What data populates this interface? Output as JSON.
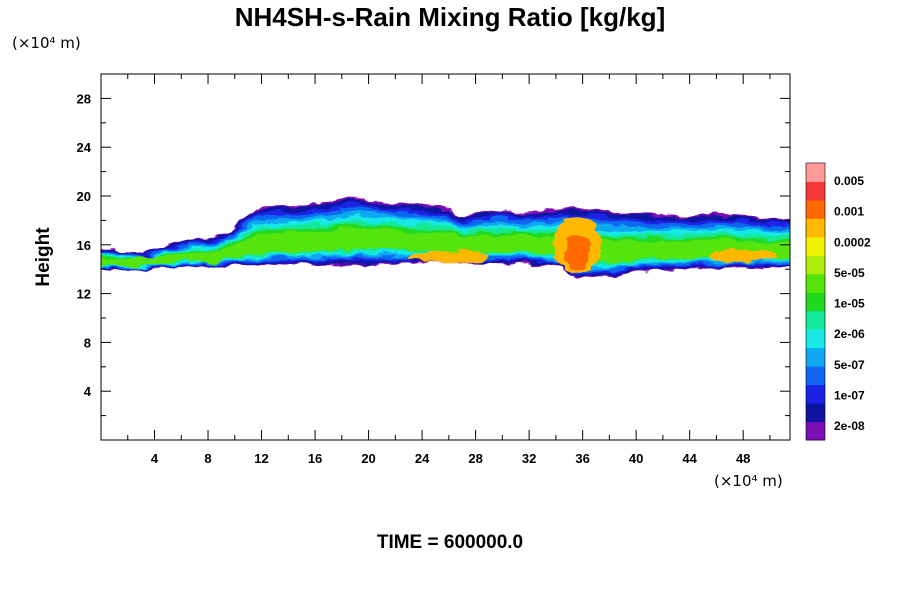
{
  "chart_data": {
    "type": "heatmap",
    "title": "NH4SH-s-Rain Mixing Ratio [kg/kg]",
    "xlabel": "",
    "ylabel": "Height",
    "x_unit": "(×10⁴ m)",
    "y_unit": "(×10⁴ m)",
    "xlim": [
      0,
      51.5
    ],
    "ylim": [
      0,
      30
    ],
    "x_ticks": [
      "4",
      "8",
      "12",
      "16",
      "20",
      "24",
      "28",
      "32",
      "36",
      "40",
      "44",
      "48"
    ],
    "y_ticks": [
      "4",
      "8",
      "12",
      "16",
      "20",
      "24",
      "28"
    ],
    "colorbar": {
      "colors": [
        "#7c0fb4",
        "#0d14a0",
        "#1a22e6",
        "#1167f0",
        "#10a8f0",
        "#18e8e8",
        "#14e89a",
        "#20d820",
        "#54e40a",
        "#b0ec0a",
        "#f0f000",
        "#ffb800",
        "#ff6a00",
        "#f83838",
        "#ff9a9a"
      ],
      "labels": [
        "2e-08",
        "1e-07",
        "5e-07",
        "2e-06",
        "1e-05",
        "5e-05",
        "0.0002",
        "0.001",
        "0.005"
      ]
    },
    "layer": {
      "top_profile": [
        [
          0,
          15.8
        ],
        [
          2,
          15.6
        ],
        [
          3,
          15.2
        ],
        [
          4,
          15.6
        ],
        [
          6,
          16.3
        ],
        [
          8,
          16.6
        ],
        [
          9.5,
          17.0
        ],
        [
          10.5,
          18.1
        ],
        [
          12,
          19.1
        ],
        [
          14,
          19.2
        ],
        [
          16,
          19.4
        ],
        [
          17.5,
          19.6
        ],
        [
          19,
          20.0
        ],
        [
          20,
          19.7
        ],
        [
          22,
          19.5
        ],
        [
          24,
          19.3
        ],
        [
          26,
          19.0
        ],
        [
          27,
          18.3
        ],
        [
          28,
          18.6
        ],
        [
          30,
          18.9
        ],
        [
          32,
          18.7
        ],
        [
          34,
          18.9
        ],
        [
          36,
          19.1
        ],
        [
          38,
          18.8
        ],
        [
          40,
          18.5
        ],
        [
          42,
          18.4
        ],
        [
          44,
          18.3
        ],
        [
          46,
          18.5
        ],
        [
          48,
          18.4
        ],
        [
          50,
          18.2
        ],
        [
          51.5,
          18.0
        ]
      ],
      "bottom_profile": [
        [
          0,
          13.9
        ],
        [
          3,
          13.9
        ],
        [
          5,
          14.1
        ],
        [
          8,
          14.2
        ],
        [
          12,
          14.3
        ],
        [
          16,
          14.4
        ],
        [
          20,
          14.4
        ],
        [
          24,
          14.5
        ],
        [
          28,
          14.5
        ],
        [
          32,
          14.4
        ],
        [
          34.5,
          14.1
        ],
        [
          35.5,
          13.1
        ],
        [
          37,
          13.4
        ],
        [
          38.5,
          13.3
        ],
        [
          40,
          13.8
        ],
        [
          44,
          14.0
        ],
        [
          48,
          14.0
        ],
        [
          51.5,
          14.0
        ]
      ],
      "cores": [
        {
          "x": 26,
          "y": 15.0,
          "rx": 3.0,
          "ry": 0.5,
          "level": 11
        },
        {
          "x": 35.6,
          "y": 16.0,
          "rx": 1.8,
          "ry": 2.3,
          "level": 11
        },
        {
          "x": 35.6,
          "y": 15.4,
          "rx": 1.0,
          "ry": 1.4,
          "level": 12
        },
        {
          "x": 48,
          "y": 15.1,
          "rx": 2.5,
          "ry": 0.5,
          "level": 11
        },
        {
          "x": 3.5,
          "y": 14.7,
          "rx": 1.3,
          "ry": 0.4,
          "level": 8
        },
        {
          "x": 8,
          "y": 15.0,
          "rx": 1.2,
          "ry": 0.5,
          "level": 8
        }
      ]
    }
  },
  "footer": {
    "time_label": "TIME = 600000.0"
  }
}
